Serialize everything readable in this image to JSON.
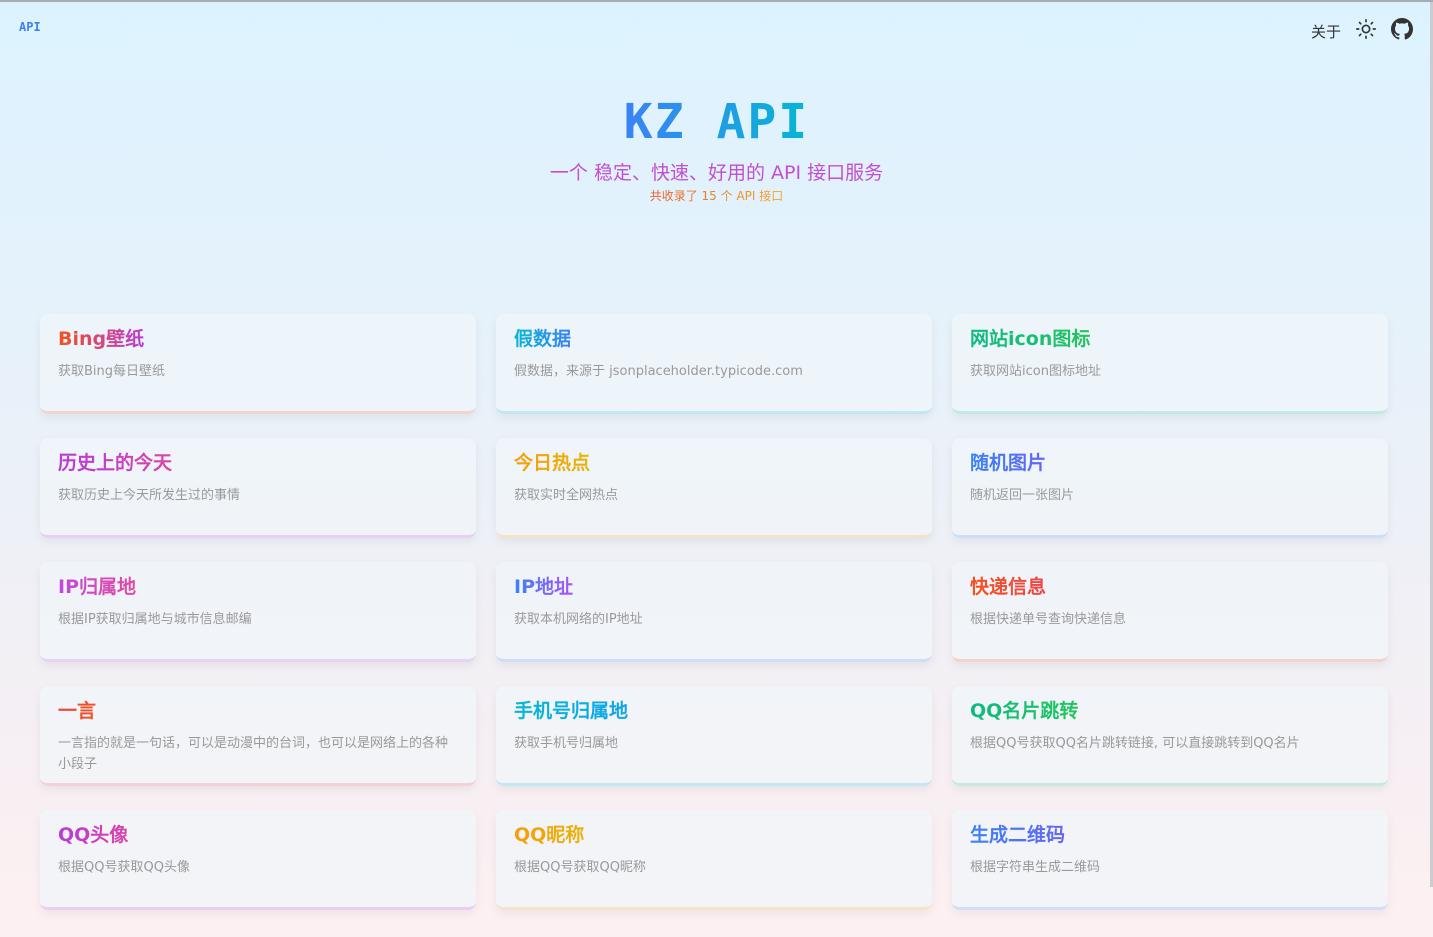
{
  "header": {
    "logo": "API",
    "about": "关于",
    "theme_icon": "sun-icon",
    "github_icon": "github-icon"
  },
  "hero": {
    "title": "KZ API",
    "subtitle": "一个 稳定、快速、好用的 API 接口服务",
    "count": "共收录了 15 个 API 接口"
  },
  "apis": [
    {
      "title": "Bing壁纸",
      "desc": "获取Bing每日壁纸",
      "c1": "#f4511e",
      "c2": "#b83ad9"
    },
    {
      "title": "假数据",
      "desc": "假数据，来源于 jsonplaceholder.typicode.com",
      "c1": "#06b6d4",
      "c2": "#3b82f6"
    },
    {
      "title": "网站icon图标",
      "desc": "获取网站icon图标地址",
      "c1": "#10b981",
      "c2": "#22c55e"
    },
    {
      "title": "历史上的今天",
      "desc": "获取历史上今天所发生过的事情",
      "c1": "#b83ad9",
      "c2": "#d946a8"
    },
    {
      "title": "今日热点",
      "desc": "获取实时全网热点",
      "c1": "#f59e0b",
      "c2": "#eab308"
    },
    {
      "title": "随机图片",
      "desc": "随机返回一张图片",
      "c1": "#3b82f6",
      "c2": "#6366f1"
    },
    {
      "title": "IP归属地",
      "desc": "根据IP获取归属地与城市信息邮编",
      "c1": "#c04ad6",
      "c2": "#e24aa0"
    },
    {
      "title": "IP地址",
      "desc": "获取本机网络的IP地址",
      "c1": "#3b82f6",
      "c2": "#a855f7"
    },
    {
      "title": "快递信息",
      "desc": "根据快递单号查询快递信息",
      "c1": "#f4511e",
      "c2": "#ef4444"
    },
    {
      "title": "一言",
      "desc": "一言指的就是一句话，可以是动漫中的台词，也可以是网络上的各种小段子",
      "c1": "#ef4444",
      "c2": "#f4511e"
    },
    {
      "title": "手机号归属地",
      "desc": "获取手机号归属地",
      "c1": "#06b6d4",
      "c2": "#0ea5e9"
    },
    {
      "title": "QQ名片跳转",
      "desc": "根据QQ号获取QQ名片跳转链接, 可以直接跳转到QQ名片",
      "c1": "#10b981",
      "c2": "#22c55e"
    },
    {
      "title": "QQ头像",
      "desc": "根据QQ号获取QQ头像",
      "c1": "#b83ad9",
      "c2": "#d946a8"
    },
    {
      "title": "QQ昵称",
      "desc": "根据QQ号获取QQ昵称",
      "c1": "#f59e0b",
      "c2": "#eab308"
    },
    {
      "title": "生成二维码",
      "desc": "根据字符串生成二维码",
      "c1": "#3b82f6",
      "c2": "#6366f1"
    }
  ]
}
